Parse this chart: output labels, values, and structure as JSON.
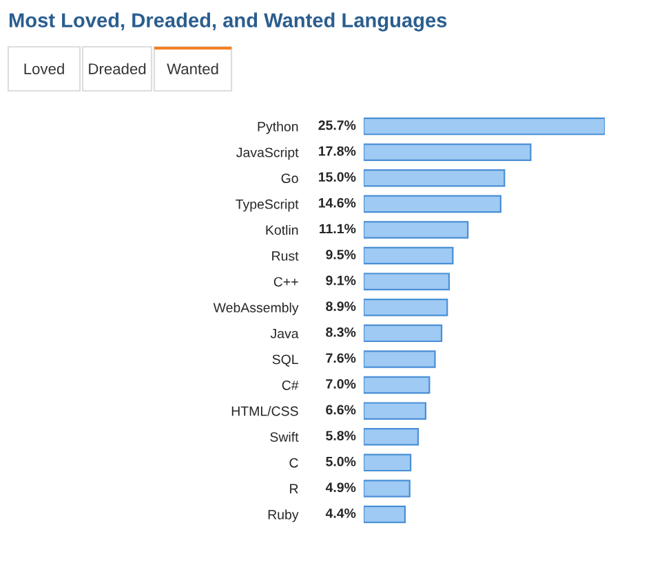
{
  "chart_data": {
    "type": "bar",
    "orientation": "horizontal",
    "title": "Most Loved, Dreaded, and Wanted Languages",
    "annotations": [
      "Loved",
      "Dreaded",
      "Wanted"
    ],
    "categories": [
      "Python",
      "JavaScript",
      "Go",
      "TypeScript",
      "Kotlin",
      "Rust",
      "C++",
      "WebAssembly",
      "Java",
      "SQL",
      "C#",
      "HTML/CSS",
      "Swift",
      "C",
      "R",
      "Ruby"
    ],
    "values": [
      25.7,
      17.8,
      15.0,
      14.6,
      11.1,
      9.5,
      9.1,
      8.9,
      8.3,
      7.6,
      7.0,
      6.6,
      5.8,
      5.0,
      4.9,
      4.4
    ],
    "value_labels": [
      "25.7%",
      "17.8%",
      "15.0%",
      "14.6%",
      "11.1%",
      "9.5%",
      "9.1%",
      "8.9%",
      "8.3%",
      "7.6%",
      "7.0%",
      "6.6%",
      "5.8%",
      "5.0%",
      "4.9%",
      "4.4%"
    ],
    "color": "#9fcaf3",
    "grid": false,
    "legend": false
  }
}
